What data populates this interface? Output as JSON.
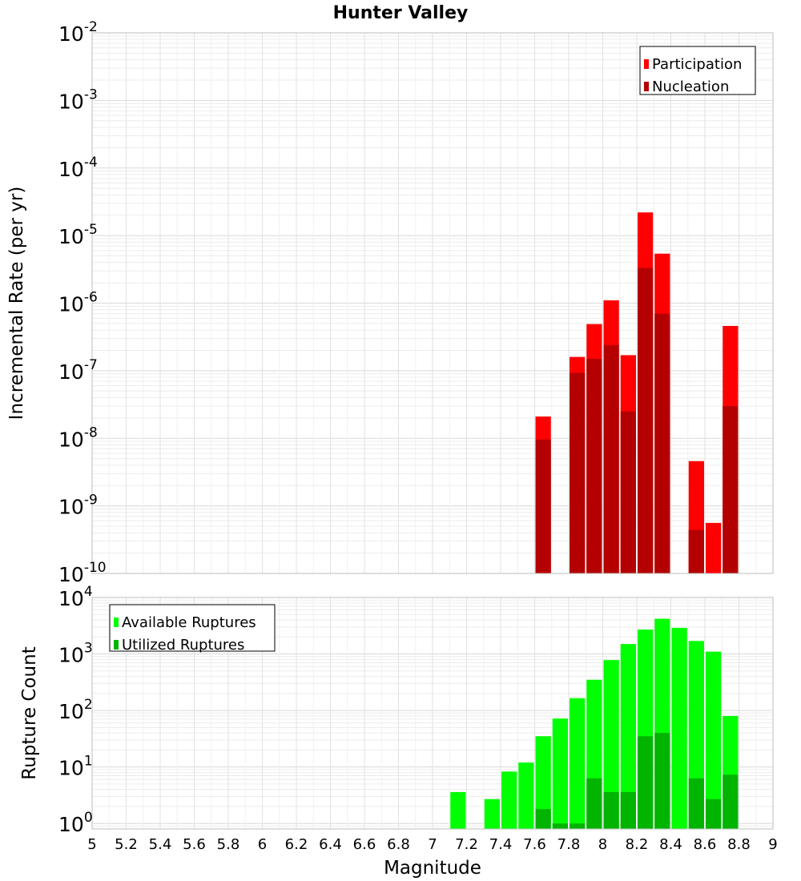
{
  "chart_data": [
    {
      "type": "bar",
      "title": "Hunter Valley",
      "ylabel": "Incremental Rate (per yr)",
      "xlabel": "",
      "yscale": "log",
      "xlim": [
        5,
        9
      ],
      "ylim": [
        1e-10,
        0.01
      ],
      "y_ticks": [
        {
          "base": "10",
          "exp": "-10"
        },
        {
          "base": "10",
          "exp": "-9"
        },
        {
          "base": "10",
          "exp": "-8"
        },
        {
          "base": "10",
          "exp": "-7"
        },
        {
          "base": "10",
          "exp": "-6"
        },
        {
          "base": "10",
          "exp": "-5"
        },
        {
          "base": "10",
          "exp": "-4"
        },
        {
          "base": "10",
          "exp": "-3"
        },
        {
          "base": "10",
          "exp": "-2"
        }
      ],
      "grid": true,
      "legend_position": "top-right",
      "x": [
        7.65,
        7.85,
        7.95,
        8.05,
        8.15,
        8.25,
        8.35,
        8.55,
        8.65,
        8.75
      ],
      "series": [
        {
          "name": "Participation",
          "color": "#ff0000",
          "values": [
            2.1e-08,
            1.6e-07,
            4.9e-07,
            1.1e-06,
            1.7e-07,
            2.2e-05,
            5.4e-06,
            4.6e-09,
            5.6e-10,
            4.6e-07
          ]
        },
        {
          "name": "Nucleation",
          "color": "#b40000",
          "values": [
            9.6e-09,
            9.3e-08,
            1.5e-07,
            2.4e-07,
            2.5e-08,
            3.3e-06,
            7e-07,
            4.4e-10,
            null,
            3e-08
          ]
        }
      ]
    },
    {
      "type": "bar",
      "title": "",
      "ylabel": "Rupture Count",
      "xlabel": "Magnitude",
      "yscale": "log",
      "xlim": [
        5,
        9
      ],
      "ylim": [
        0.8,
        10000
      ],
      "y_ticks": [
        {
          "value": 1,
          "base": "10",
          "exp": "0"
        },
        {
          "value": 10,
          "base": "10",
          "exp": "1"
        },
        {
          "value": 100,
          "base": "10",
          "exp": "2"
        },
        {
          "value": 1000,
          "base": "10",
          "exp": "3"
        },
        {
          "value": 10000,
          "base": "10",
          "exp": "4"
        }
      ],
      "x_ticks": [
        "5",
        "5.2",
        "5.4",
        "5.6",
        "5.8",
        "6",
        "6.2",
        "6.4",
        "6.6",
        "6.8",
        "7",
        "7.2",
        "7.4",
        "7.6",
        "7.8",
        "8",
        "8.2",
        "8.4",
        "8.6",
        "8.8",
        "9"
      ],
      "grid": true,
      "legend_position": "top-left",
      "x": [
        7.15,
        7.35,
        7.45,
        7.55,
        7.65,
        7.75,
        7.85,
        7.95,
        8.05,
        8.15,
        8.25,
        8.35,
        8.45,
        8.55,
        8.65,
        8.75
      ],
      "series": [
        {
          "name": "Available Ruptures",
          "color": "#00ff00",
          "values": [
            3.6,
            2.7,
            8.3,
            12,
            35,
            72,
            165,
            350,
            780,
            1500,
            2700,
            4200,
            2900,
            1700,
            1100,
            80
          ]
        },
        {
          "name": "Utilized Ruptures",
          "color": "#00b400",
          "values": [
            null,
            null,
            null,
            null,
            1.8,
            1,
            1,
            6.3,
            3.6,
            3.6,
            35,
            40,
            null,
            6.3,
            2.7,
            7.3
          ]
        }
      ]
    }
  ]
}
